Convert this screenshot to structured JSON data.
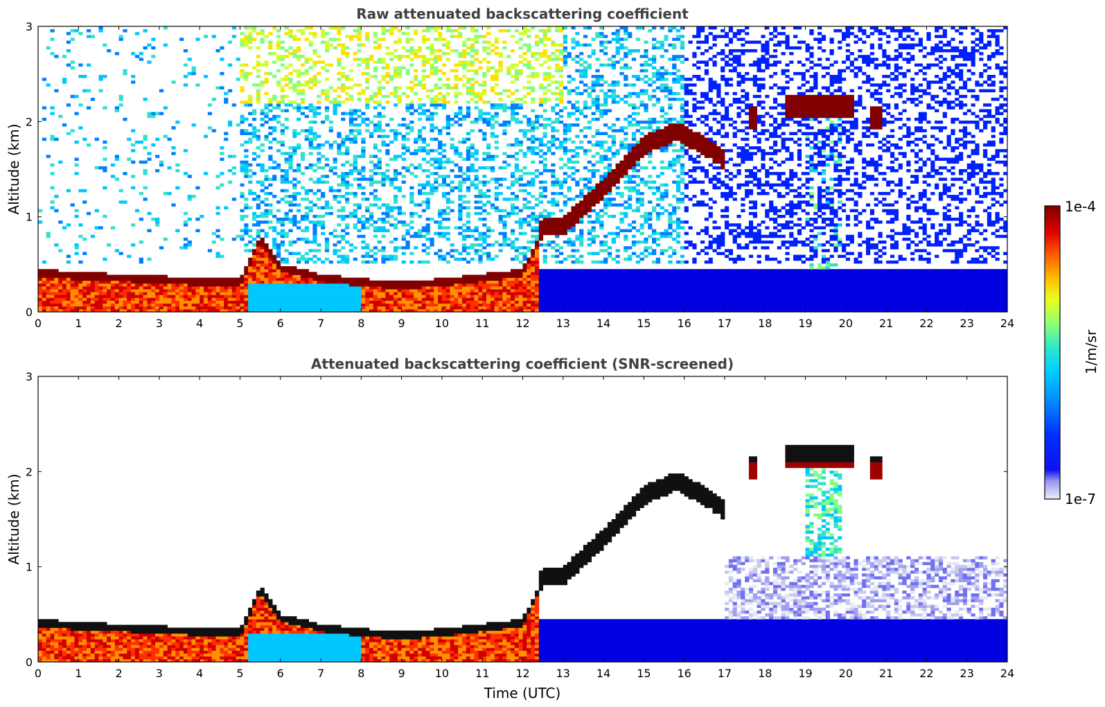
{
  "chart_data": [
    {
      "type": "heatmap",
      "title": "Raw attenuated backscattering coefficient",
      "xlabel": "",
      "ylabel": "Altitude (km)",
      "xlim": [
        0,
        24
      ],
      "ylim": [
        0,
        3
      ],
      "xticks": [
        "0",
        "1",
        "2",
        "3",
        "4",
        "5",
        "6",
        "7",
        "8",
        "9",
        "10",
        "11",
        "12",
        "13",
        "14",
        "15",
        "16",
        "17",
        "18",
        "19",
        "20",
        "21",
        "22",
        "23",
        "24"
      ],
      "yticks": [
        "0",
        "1",
        "2",
        "3"
      ],
      "screened": false,
      "features": {
        "boundary_layer_top_km": [
          [
            0,
            0.45
          ],
          [
            1,
            0.42
          ],
          [
            2,
            0.4
          ],
          [
            3,
            0.38
          ],
          [
            4,
            0.36
          ],
          [
            5,
            0.35
          ],
          [
            5.5,
            0.8
          ],
          [
            6,
            0.5
          ],
          [
            7,
            0.4
          ],
          [
            8,
            0.35
          ],
          [
            9,
            0.32
          ],
          [
            10,
            0.35
          ],
          [
            11,
            0.4
          ],
          [
            12,
            0.45
          ],
          [
            12.5,
            0.9
          ],
          [
            13,
            0.9
          ],
          [
            14,
            1.3
          ],
          [
            15,
            1.75
          ],
          [
            15.8,
            1.9
          ],
          [
            16.5,
            1.75
          ],
          [
            17,
            1.6
          ]
        ],
        "mid_cloud_segments": [
          {
            "x_start": 17.55,
            "x_end": 17.8,
            "altitude_km": 2.05
          },
          {
            "x_start": 18.5,
            "x_end": 20.2,
            "altitude_km": 2.15
          },
          {
            "x_start": 20.6,
            "x_end": 20.85,
            "altitude_km": 2.05
          }
        ]
      }
    },
    {
      "type": "heatmap",
      "title": "Attenuated backscattering coefficient (SNR-screened)",
      "xlabel": "Time (UTC)",
      "ylabel": "Altitude (km)",
      "xlim": [
        0,
        24
      ],
      "ylim": [
        0,
        3
      ],
      "xticks": [
        "0",
        "1",
        "2",
        "3",
        "4",
        "5",
        "6",
        "7",
        "8",
        "9",
        "10",
        "11",
        "12",
        "13",
        "14",
        "15",
        "16",
        "17",
        "18",
        "19",
        "20",
        "21",
        "22",
        "23",
        "24"
      ],
      "yticks": [
        "0",
        "1",
        "2",
        "3"
      ],
      "screened": true
    }
  ],
  "colorbar": {
    "label": "1/m/sr",
    "max_label": "1e-4",
    "min_label": "1e-7",
    "colormap": [
      "#0000e0",
      "#0020ff",
      "#0080ff",
      "#00c8ff",
      "#30e0d0",
      "#80ff80",
      "#d0ff30",
      "#ffe000",
      "#ff9000",
      "#ff3000",
      "#d00000",
      "#800000"
    ],
    "low_colors": [
      "#e8e8f8",
      "#c8c8f0",
      "#a0a0f0",
      "#7070f0"
    ]
  }
}
